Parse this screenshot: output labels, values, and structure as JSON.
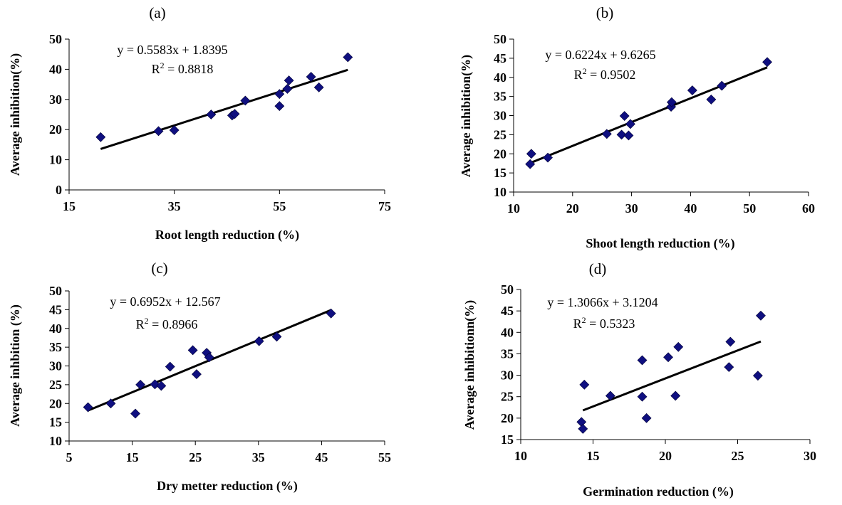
{
  "chart_data": [
    {
      "type": "scatter",
      "panel_label": "(a)",
      "xlabel": "Root length reduction (%)",
      "ylabel": "Average  inhibition(%)",
      "xlim": [
        15,
        75
      ],
      "ylim": [
        0,
        50
      ],
      "xticks": [
        15,
        35,
        55,
        75
      ],
      "yticks": [
        0,
        10,
        20,
        30,
        40,
        50
      ],
      "trendline": {
        "slope": 0.5583,
        "intercept": 1.8395,
        "x_range": [
          21,
          68
        ]
      },
      "equation": "y = 0.5583x + 1.8395",
      "r2_prefix": "R",
      "r2_value": " = 0.8818",
      "marker_color": "#0f0f80",
      "points": [
        {
          "x": 21,
          "y": 17.5
        },
        {
          "x": 32,
          "y": 19.5
        },
        {
          "x": 35,
          "y": 19.8
        },
        {
          "x": 42,
          "y": 25
        },
        {
          "x": 46,
          "y": 24.7
        },
        {
          "x": 46.5,
          "y": 25.2
        },
        {
          "x": 48.5,
          "y": 29.6
        },
        {
          "x": 55,
          "y": 31.8
        },
        {
          "x": 55,
          "y": 27.8
        },
        {
          "x": 56.5,
          "y": 33.5
        },
        {
          "x": 56.8,
          "y": 36.3
        },
        {
          "x": 61,
          "y": 37.5
        },
        {
          "x": 62.5,
          "y": 34
        },
        {
          "x": 68,
          "y": 44
        }
      ]
    },
    {
      "type": "scatter",
      "panel_label": "(b)",
      "xlabel": "Shoot length reduction (%)",
      "ylabel": "Average  inhibition(%)",
      "xlim": [
        10,
        60
      ],
      "ylim": [
        10,
        50
      ],
      "xticks": [
        10,
        20,
        30,
        40,
        50,
        60
      ],
      "yticks": [
        10,
        15,
        20,
        25,
        30,
        35,
        40,
        45,
        50
      ],
      "trendline": {
        "slope": 0.6224,
        "intercept": 9.6265,
        "x_range": [
          12.5,
          53
        ]
      },
      "equation": "y = 0.6224x + 9.6265",
      "r2_prefix": "R",
      "r2_value": " = 0.9502",
      "marker_color": "#0f0f80",
      "points": [
        {
          "x": 12.8,
          "y": 17.3
        },
        {
          "x": 13,
          "y": 20
        },
        {
          "x": 15.8,
          "y": 19
        },
        {
          "x": 25.8,
          "y": 25.2
        },
        {
          "x": 28.3,
          "y": 25
        },
        {
          "x": 28.8,
          "y": 29.9
        },
        {
          "x": 29.5,
          "y": 24.8
        },
        {
          "x": 29.8,
          "y": 27.8
        },
        {
          "x": 36.7,
          "y": 32.3
        },
        {
          "x": 36.8,
          "y": 33.5
        },
        {
          "x": 40.3,
          "y": 36.6
        },
        {
          "x": 43.5,
          "y": 34.2
        },
        {
          "x": 45.3,
          "y": 37.8
        },
        {
          "x": 53,
          "y": 44
        }
      ]
    },
    {
      "type": "scatter",
      "panel_label": "(c)",
      "xlabel": "Dry metter reduction (%)",
      "ylabel": "Average  inhbition (%)",
      "xlim": [
        5,
        55
      ],
      "ylim": [
        10,
        50
      ],
      "xticks": [
        5,
        15,
        25,
        35,
        45,
        55
      ],
      "yticks": [
        10,
        15,
        20,
        25,
        30,
        35,
        40,
        45,
        50
      ],
      "trendline": {
        "slope": 0.6952,
        "intercept": 12.567,
        "x_range": [
          8,
          46.5
        ]
      },
      "equation": "y = 0.6952x + 12.567",
      "r2_prefix": "R",
      "r2_value": " = 0.8966",
      "marker_color": "#0f0f80",
      "points": [
        {
          "x": 8,
          "y": 19
        },
        {
          "x": 11.6,
          "y": 20
        },
        {
          "x": 15.5,
          "y": 17.3
        },
        {
          "x": 16.3,
          "y": 25
        },
        {
          "x": 18.6,
          "y": 25.1
        },
        {
          "x": 19.6,
          "y": 24.7
        },
        {
          "x": 21,
          "y": 29.8
        },
        {
          "x": 24.6,
          "y": 34.2
        },
        {
          "x": 25.2,
          "y": 27.8
        },
        {
          "x": 26.8,
          "y": 33.5
        },
        {
          "x": 27.2,
          "y": 32.3
        },
        {
          "x": 35.1,
          "y": 36.6
        },
        {
          "x": 37.9,
          "y": 37.8
        },
        {
          "x": 46.5,
          "y": 44
        }
      ]
    },
    {
      "type": "scatter",
      "panel_label": "(d)",
      "xlabel": "Germination  reduction (%)",
      "ylabel": "Average inhibitionn(%)",
      "xlim": [
        10,
        30
      ],
      "ylim": [
        15,
        50
      ],
      "xticks": [
        10,
        15,
        20,
        25,
        30
      ],
      "yticks": [
        15,
        20,
        25,
        30,
        35,
        40,
        45,
        50
      ],
      "trendline": {
        "slope": 1.3066,
        "intercept": 3.1204,
        "x_range": [
          14.3,
          26.6
        ]
      },
      "equation": "y = 1.3066x + 3.1204",
      "r2_prefix": "R",
      "r2_value": " = 0.5323",
      "marker_color": "#0f0f80",
      "points": [
        {
          "x": 14.2,
          "y": 19.1
        },
        {
          "x": 14.3,
          "y": 17.5
        },
        {
          "x": 14.4,
          "y": 27.8
        },
        {
          "x": 16.2,
          "y": 25.2
        },
        {
          "x": 18.4,
          "y": 33.5
        },
        {
          "x": 18.4,
          "y": 25
        },
        {
          "x": 18.7,
          "y": 20
        },
        {
          "x": 20.2,
          "y": 34.2
        },
        {
          "x": 20.7,
          "y": 25.2
        },
        {
          "x": 20.9,
          "y": 36.6
        },
        {
          "x": 24.4,
          "y": 31.9
        },
        {
          "x": 24.5,
          "y": 37.8
        },
        {
          "x": 26.4,
          "y": 29.9
        },
        {
          "x": 26.6,
          "y": 43.9
        }
      ]
    }
  ]
}
